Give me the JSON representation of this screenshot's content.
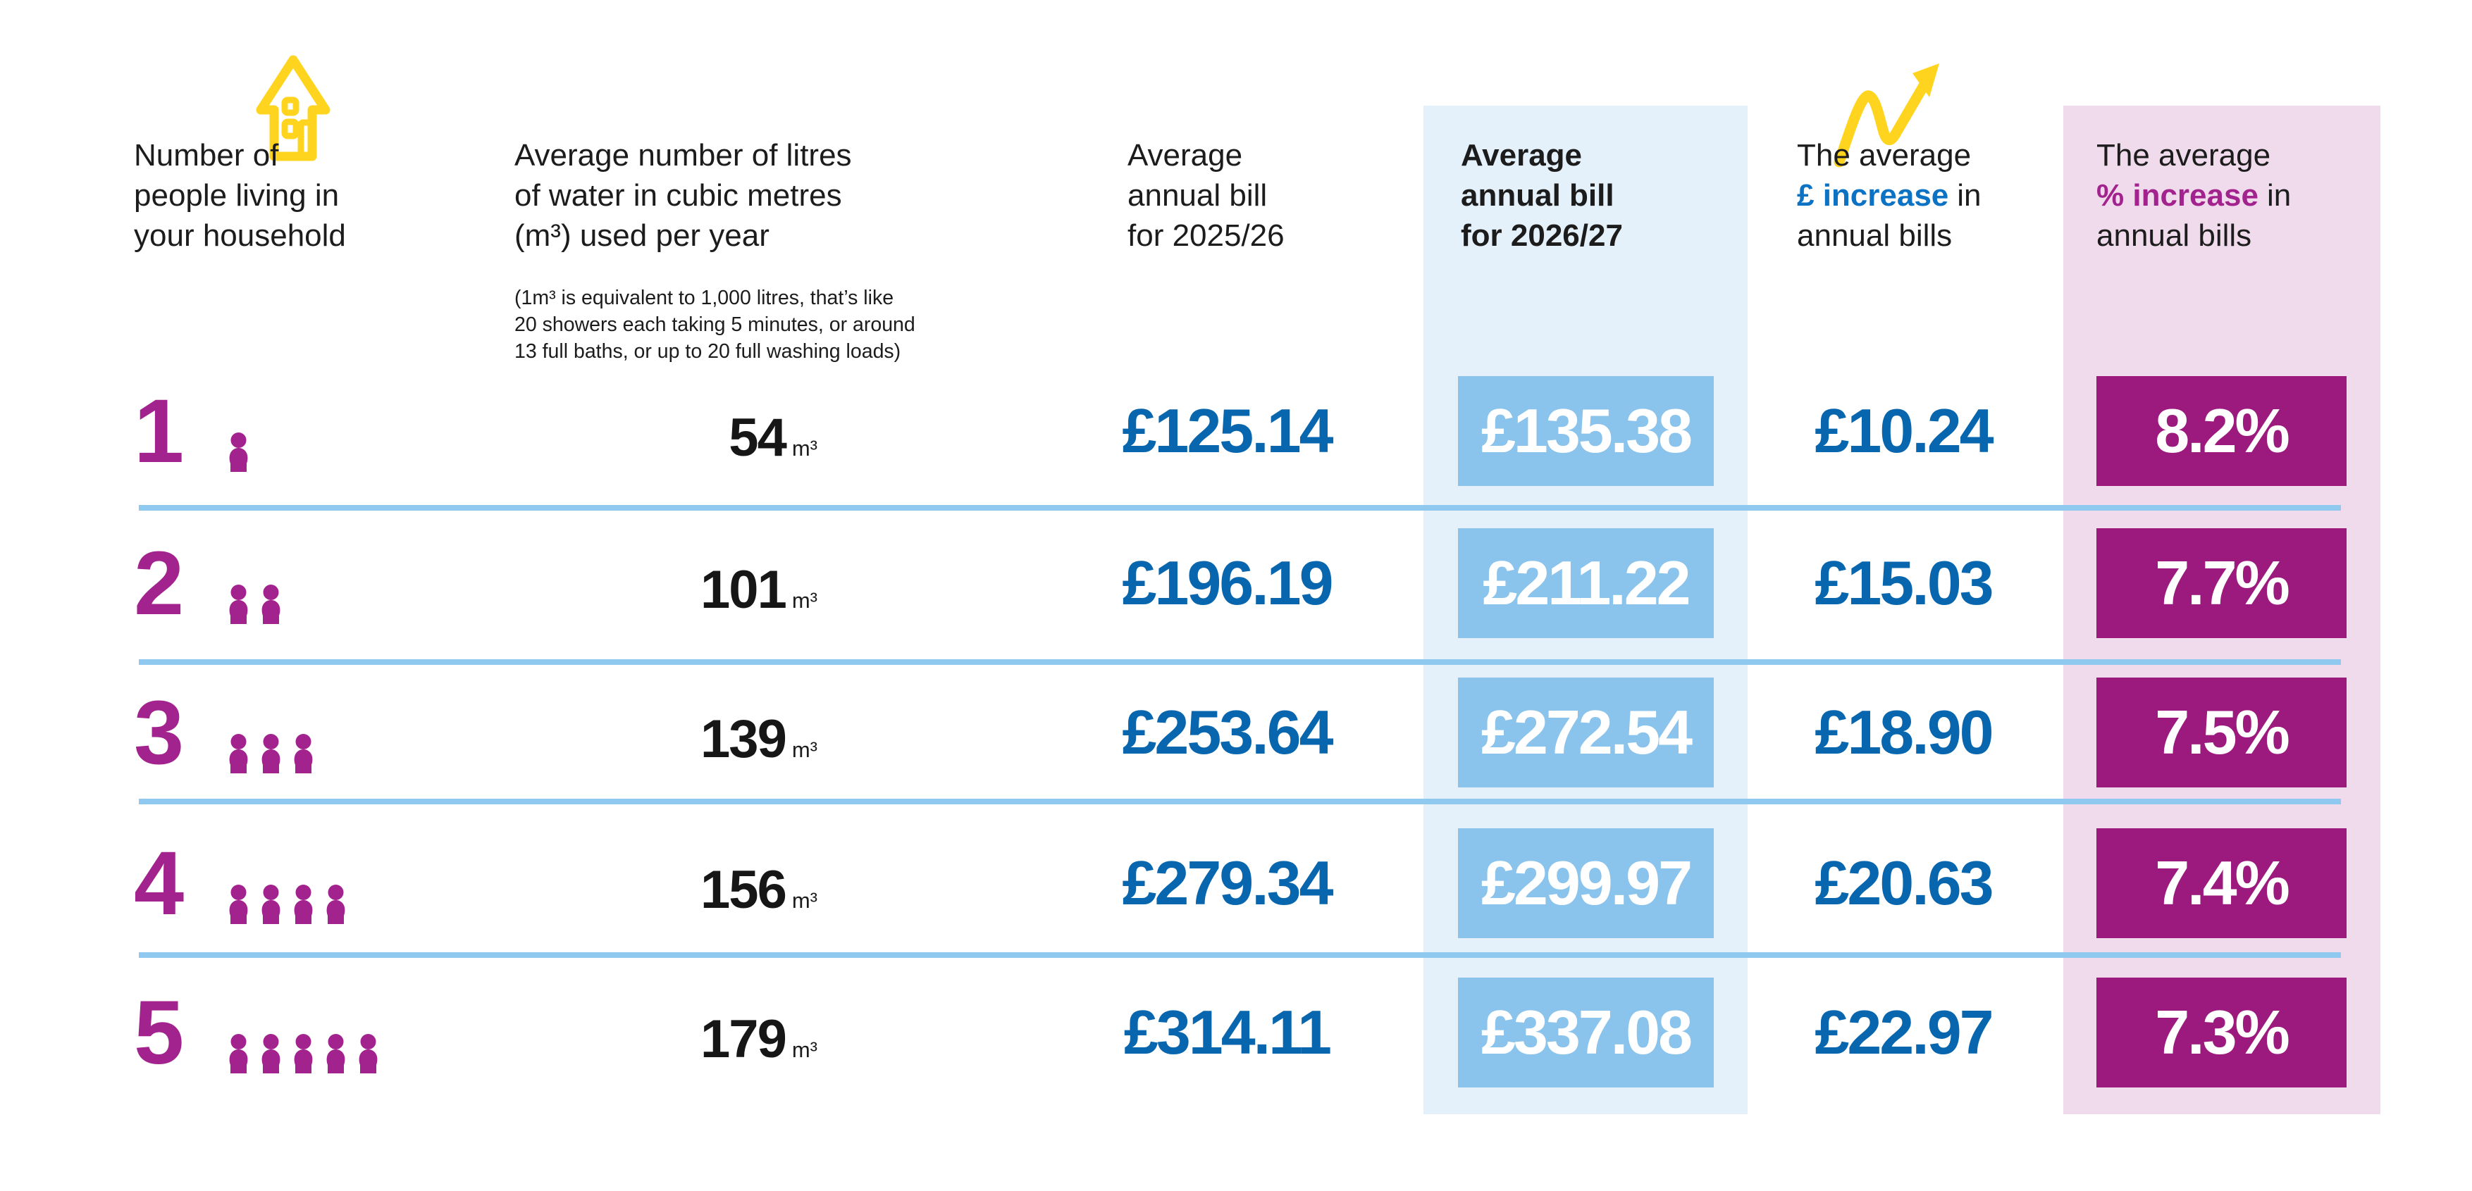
{
  "table": {
    "columns": [
      {
        "id": "people",
        "header_lines": [
          "Number of",
          "people living in",
          "your household"
        ]
      },
      {
        "id": "usage",
        "header_lines": [
          "Average number of litres",
          "of water in cubic metres",
          "(m³) used per year"
        ],
        "header_note_lines": [
          "(1m³ is equivalent to 1,000 litres, that’s like",
          "20 showers each taking 5 minutes, or around",
          "13 full baths, or up to 20 full washing loads)"
        ]
      },
      {
        "id": "bill_2025",
        "header_lines": [
          "Average",
          "annual bill",
          "for 2025/26"
        ]
      },
      {
        "id": "bill_2026",
        "header_lines": [
          "Average",
          "annual bill",
          "for 2026/27"
        ],
        "highlight": "light-blue"
      },
      {
        "id": "gbp_increase",
        "header_line1": "The average",
        "header_accent": "£ increase",
        "header_inline_after": "in",
        "header_line3": "annual bills",
        "accent_color": "#0B72C4"
      },
      {
        "id": "pct_increase",
        "header_line1": "The average",
        "header_accent": "% increase",
        "header_inline_after": "in",
        "header_line3": "annual bills",
        "accent_color": "#A3238E",
        "highlight": "light-pink"
      }
    ],
    "rows": [
      {
        "people": "1",
        "usage": "54",
        "usage_unit": "m³",
        "bill_2025": "£125.14",
        "bill_2026": "£135.38",
        "gbp_increase": "£10.24",
        "pct_increase": "8.2%"
      },
      {
        "people": "2",
        "usage": "101",
        "usage_unit": "m³",
        "bill_2025": "£196.19",
        "bill_2026": "£211.22",
        "gbp_increase": "£15.03",
        "pct_increase": "7.7%"
      },
      {
        "people": "3",
        "usage": "139",
        "usage_unit": "m³",
        "bill_2025": "£253.64",
        "bill_2026": "£272.54",
        "gbp_increase": "£18.90",
        "pct_increase": "7.5%"
      },
      {
        "people": "4",
        "usage": "156",
        "usage_unit": "m³",
        "bill_2025": "£279.34",
        "bill_2026": "£299.97",
        "gbp_increase": "£20.63",
        "pct_increase": "7.4%"
      },
      {
        "people": "5",
        "usage": "179",
        "usage_unit": "m³",
        "bill_2025": "£314.11",
        "bill_2026": "£337.08",
        "gbp_increase": "£22.97",
        "pct_increase": "7.3%"
      }
    ]
  },
  "icons": {
    "house": "house-icon",
    "trend_arrow": "trend-up-arrow-icon",
    "person": "person-icon"
  },
  "colors": {
    "accent_blue": "#0B72C4",
    "value_blue": "#0866AF",
    "box_blue": "#8AC3EB",
    "band_blue": "#E4F0FA",
    "divider_blue": "#90C9F0",
    "box_magenta": "#9C1A7E",
    "text_magenta": "#A3238E",
    "band_pink": "#F0DBEC",
    "icon_yellow": "#FFD41F",
    "text_black": "#1C1C1C"
  },
  "chart_data": {
    "type": "table",
    "columns": [
      "Number of people living in your household",
      "Average number of litres of water in cubic metres (m³) used per year",
      "Average annual bill for 2025/26",
      "Average annual bill for 2026/27",
      "The average £ increase in annual bills",
      "The average % increase in annual bills"
    ],
    "rows": [
      [
        1,
        "54 m³",
        "£125.14",
        "£135.38",
        "£10.24",
        "8.2%"
      ],
      [
        2,
        "101 m³",
        "£196.19",
        "£211.22",
        "£15.03",
        "7.7%"
      ],
      [
        3,
        "139 m³",
        "£253.64",
        "£272.54",
        "£18.90",
        "7.5%"
      ],
      [
        4,
        "156 m³",
        "£279.34",
        "£299.97",
        "£20.63",
        "7.4%"
      ],
      [
        5,
        "179 m³",
        "£314.11",
        "£337.08",
        "£22.97",
        "7.3%"
      ]
    ],
    "note": "(1m³ is equivalent to 1,000 litres, that’s like 20 showers each taking 5 minutes, or around 13 full baths, or up to 20 full washing loads)"
  }
}
